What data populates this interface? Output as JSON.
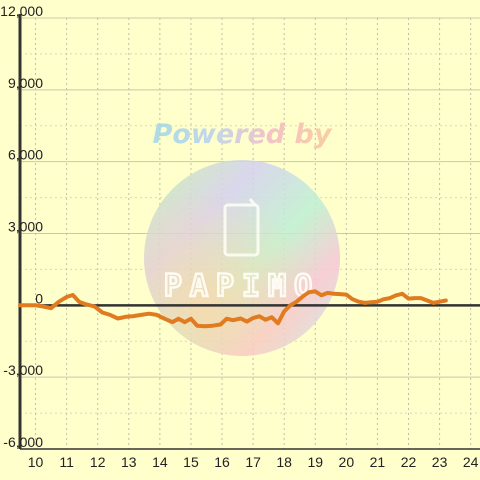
{
  "chart_data": {
    "type": "line",
    "xlim": [
      9.5,
      24.3
    ],
    "ylim": [
      -6000,
      12000
    ],
    "y_ticks": [
      12000,
      9000,
      6000,
      3000,
      0,
      -3000,
      -6000
    ],
    "y_tick_labels": [
      "12,000",
      "9,000",
      "6,000",
      "3,000",
      "0",
      "-3,000",
      "-6,000"
    ],
    "x_ticks": [
      10,
      11,
      12,
      13,
      14,
      15,
      16,
      17,
      18,
      19,
      20,
      21,
      22,
      23,
      24
    ],
    "x_tick_labels": [
      "10",
      "11",
      "12",
      "13",
      "14",
      "15",
      "16",
      "17",
      "18",
      "19",
      "20",
      "21",
      "22",
      "23",
      "24"
    ],
    "grid": true,
    "series": [
      {
        "color": "#e07b20",
        "points": [
          [
            9.5,
            0
          ],
          [
            10.0,
            0
          ],
          [
            10.25,
            -50
          ],
          [
            10.5,
            -120
          ],
          [
            10.75,
            150
          ],
          [
            11.0,
            350
          ],
          [
            11.2,
            430
          ],
          [
            11.4,
            150
          ],
          [
            11.6,
            50
          ],
          [
            11.9,
            -50
          ],
          [
            12.15,
            -300
          ],
          [
            12.4,
            -400
          ],
          [
            12.65,
            -550
          ],
          [
            12.9,
            -480
          ],
          [
            13.15,
            -450
          ],
          [
            13.4,
            -400
          ],
          [
            13.65,
            -350
          ],
          [
            13.9,
            -400
          ],
          [
            14.15,
            -560
          ],
          [
            14.4,
            -700
          ],
          [
            14.6,
            -560
          ],
          [
            14.8,
            -700
          ],
          [
            15.0,
            -560
          ],
          [
            15.2,
            -850
          ],
          [
            15.45,
            -870
          ],
          [
            15.7,
            -850
          ],
          [
            15.95,
            -800
          ],
          [
            16.15,
            -560
          ],
          [
            16.35,
            -620
          ],
          [
            16.6,
            -550
          ],
          [
            16.8,
            -680
          ],
          [
            17.0,
            -530
          ],
          [
            17.2,
            -460
          ],
          [
            17.4,
            -600
          ],
          [
            17.6,
            -500
          ],
          [
            17.8,
            -750
          ],
          [
            18.0,
            -250
          ],
          [
            18.2,
            0
          ],
          [
            18.4,
            150
          ],
          [
            18.6,
            370
          ],
          [
            18.8,
            550
          ],
          [
            19.0,
            580
          ],
          [
            19.2,
            420
          ],
          [
            19.4,
            520
          ],
          [
            19.6,
            480
          ],
          [
            19.8,
            470
          ],
          [
            20.0,
            450
          ],
          [
            20.2,
            250
          ],
          [
            20.4,
            150
          ],
          [
            20.6,
            100
          ],
          [
            20.8,
            130
          ],
          [
            21.0,
            150
          ],
          [
            21.2,
            250
          ],
          [
            21.4,
            300
          ],
          [
            21.6,
            420
          ],
          [
            21.8,
            480
          ],
          [
            22.0,
            280
          ],
          [
            22.2,
            300
          ],
          [
            22.4,
            300
          ],
          [
            22.6,
            200
          ],
          [
            22.8,
            100
          ],
          [
            23.0,
            150
          ],
          [
            23.2,
            200
          ]
        ]
      }
    ]
  },
  "watermark": {
    "powered_text": "Powered by",
    "logo_text": "PAPIMO"
  }
}
